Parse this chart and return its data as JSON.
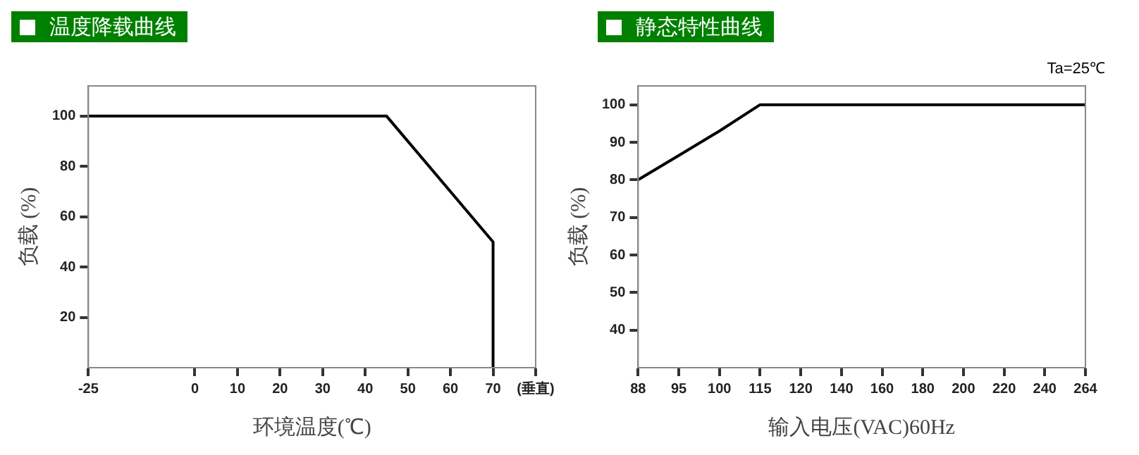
{
  "chart_data": [
    {
      "type": "line",
      "title": "温度降载曲线",
      "xlabel": "环境温度(℃)",
      "ylabel": "负载 (%)",
      "x": [
        -25,
        45,
        70,
        70
      ],
      "values": [
        100,
        100,
        50,
        0
      ],
      "color": "#000000",
      "xlim": [
        -25,
        80
      ],
      "xticks": [
        -25,
        0,
        10,
        20,
        30,
        40,
        50,
        60,
        70,
        {
          "value": 80,
          "label": "(垂直)"
        }
      ],
      "ylim": [
        0,
        112
      ],
      "yticks": [
        20,
        40,
        60,
        80,
        100
      ]
    },
    {
      "type": "line",
      "title": "静态特性曲线",
      "xlabel": "输入电压(VAC)60Hz",
      "ylabel": "负载 (%)",
      "categories": [
        "88",
        "95",
        "100",
        "115",
        "120",
        "140",
        "160",
        "180",
        "200",
        "220",
        "240",
        "264"
      ],
      "values": [
        80,
        86.5,
        93,
        100,
        100,
        100,
        100,
        100,
        100,
        100,
        100,
        100
      ],
      "color": "#000000",
      "ylim": [
        30,
        105
      ],
      "yticks": [
        40,
        50,
        60,
        70,
        80,
        90,
        100
      ],
      "annotations": [
        "Ta=25℃"
      ]
    }
  ]
}
